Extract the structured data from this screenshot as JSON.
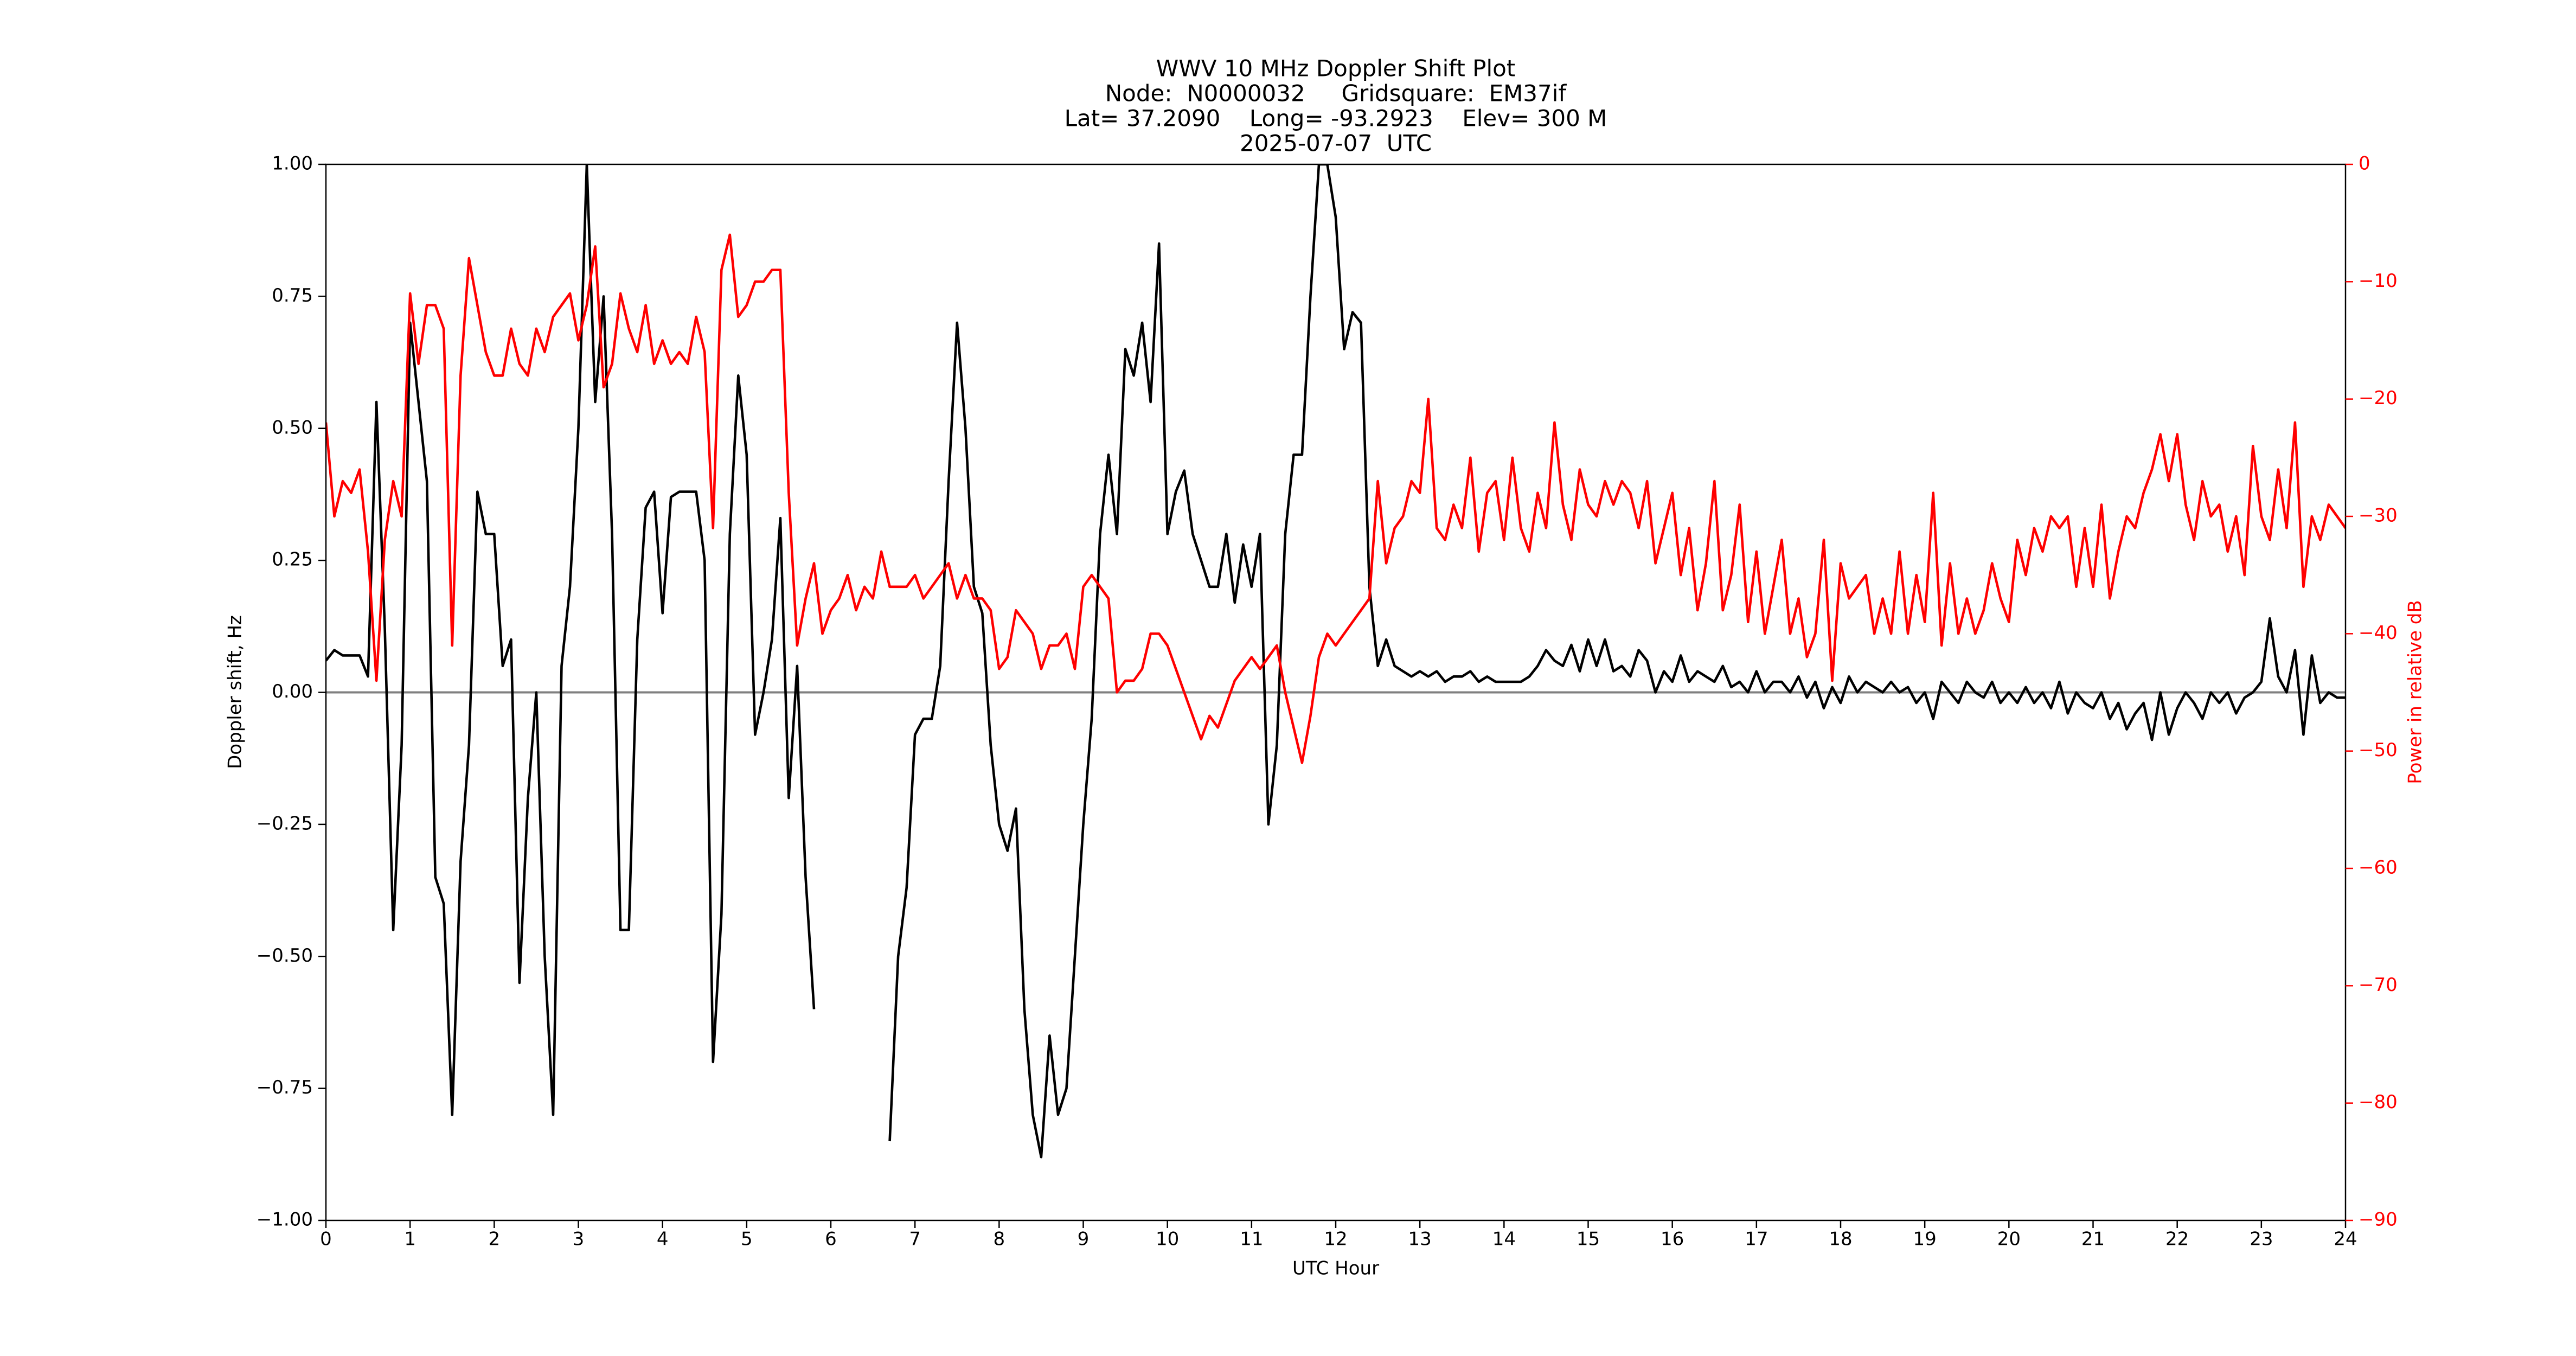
{
  "chart_data": {
    "type": "line",
    "title": [
      "WWV 10 MHz Doppler Shift Plot",
      "Node:  N0000032     Gridsquare:  EM37if",
      "Lat= 37.2090    Long= -93.2923    Elev= 300 M",
      "2025-07-07  UTC"
    ],
    "xlabel": "UTC Hour",
    "ylabel": "Doppler shift, Hz",
    "y2label": "Power in relative dB",
    "x": [
      0,
      0.1,
      0.2,
      0.3,
      0.4,
      0.5,
      0.6,
      0.7,
      0.8,
      0.9,
      1,
      1.1,
      1.2,
      1.3,
      1.4,
      1.5,
      1.6,
      1.7,
      1.8,
      1.9,
      2,
      2.1,
      2.2,
      2.3,
      2.4,
      2.5,
      2.6,
      2.7,
      2.8,
      2.9,
      3,
      3.1,
      3.2,
      3.3,
      3.4,
      3.5,
      3.6,
      3.7,
      3.8,
      3.9,
      4,
      4.1,
      4.2,
      4.3,
      4.4,
      4.5,
      4.6,
      4.7,
      4.8,
      4.9,
      5,
      5.1,
      5.2,
      5.3,
      5.4,
      5.5,
      5.6,
      5.7,
      5.8,
      5.9,
      6,
      6.1,
      6.2,
      6.3,
      6.4,
      6.5,
      6.6,
      6.7,
      6.8,
      6.9,
      7,
      7.1,
      7.2,
      7.3,
      7.4,
      7.5,
      7.6,
      7.7,
      7.8,
      7.9,
      8,
      8.1,
      8.2,
      8.3,
      8.4,
      8.5,
      8.6,
      8.7,
      8.8,
      8.9,
      9,
      9.1,
      9.2,
      9.3,
      9.4,
      9.5,
      9.6,
      9.7,
      9.8,
      9.9,
      10,
      10.1,
      10.2,
      10.3,
      10.4,
      10.5,
      10.6,
      10.7,
      10.8,
      10.9,
      11,
      11.1,
      11.2,
      11.3,
      11.4,
      11.5,
      11.6,
      11.7,
      11.8,
      11.9,
      12,
      12.1,
      12.2,
      12.3,
      12.4,
      12.5,
      12.6,
      12.7,
      12.8,
      12.9,
      13,
      13.1,
      13.2,
      13.3,
      13.4,
      13.5,
      13.6,
      13.7,
      13.8,
      13.9,
      14,
      14.1,
      14.2,
      14.3,
      14.4,
      14.5,
      14.6,
      14.7,
      14.8,
      14.9,
      15,
      15.1,
      15.2,
      15.3,
      15.4,
      15.5,
      15.6,
      15.7,
      15.8,
      15.9,
      16,
      16.1,
      16.2,
      16.3,
      16.4,
      16.5,
      16.6,
      16.7,
      16.8,
      16.9,
      17,
      17.1,
      17.2,
      17.3,
      17.4,
      17.5,
      17.6,
      17.7,
      17.8,
      17.9,
      18,
      18.1,
      18.2,
      18.3,
      18.4,
      18.5,
      18.6,
      18.7,
      18.8,
      18.9,
      19,
      19.1,
      19.2,
      19.3,
      19.4,
      19.5,
      19.6,
      19.7,
      19.8,
      19.9,
      20,
      20.1,
      20.2,
      20.3,
      20.4,
      20.5,
      20.6,
      20.7,
      20.8,
      20.9,
      21,
      21.1,
      21.2,
      21.3,
      21.4,
      21.5,
      21.6,
      21.7,
      21.8,
      21.9,
      22,
      22.1,
      22.2,
      22.3,
      22.4,
      22.5,
      22.6,
      22.7,
      22.8,
      22.9,
      23,
      23.1,
      23.2,
      23.3,
      23.4,
      23.5,
      23.6,
      23.7,
      23.8,
      23.9,
      24
    ],
    "series": [
      {
        "color": "#000000",
        "values": [
          0.06,
          0.08,
          0.07,
          0.07,
          0.07,
          0.03,
          0.55,
          0.12,
          -0.45,
          -0.1,
          0.7,
          0.55,
          0.4,
          -0.35,
          -0.4,
          -0.8,
          -0.32,
          -0.1,
          0.38,
          0.3,
          0.3,
          0.05,
          0.1,
          -0.55,
          -0.2,
          0,
          -0.5,
          -0.8,
          0.05,
          0.2,
          0.5,
          1.0,
          0.55,
          0.75,
          0.3,
          -0.45,
          -0.45,
          0.1,
          0.35,
          0.38,
          0.15,
          0.37,
          0.38,
          0.38,
          0.38,
          0.25,
          -0.7,
          -0.42,
          0.3,
          0.6,
          0.45,
          -0.08,
          0,
          0.1,
          0.33,
          -0.2,
          0.05,
          -0.35,
          -0.6,
          null,
          null,
          null,
          null,
          null,
          null,
          null,
          null,
          -0.85,
          -0.5,
          -0.37,
          -0.08,
          -0.05,
          -0.05,
          0.05,
          0.4,
          0.7,
          0.5,
          0.2,
          0.15,
          -0.1,
          -0.25,
          -0.3,
          -0.22,
          -0.6,
          -0.8,
          -0.88,
          -0.65,
          -0.8,
          -0.75,
          -0.5,
          -0.25,
          -0.05,
          0.3,
          0.45,
          0.3,
          0.65,
          0.6,
          0.7,
          0.55,
          0.85,
          0.3,
          0.38,
          0.42,
          0.3,
          0.25,
          0.2,
          0.2,
          0.3,
          0.17,
          0.28,
          0.2,
          0.3,
          -0.25,
          -0.1,
          0.3,
          0.45,
          0.45,
          0.75,
          1.0,
          1.0,
          0.9,
          0.65,
          0.72,
          0.7,
          0.2,
          0.05,
          0.1,
          0.05,
          0.04,
          0.03,
          0.04,
          0.03,
          0.04,
          0.02,
          0.03,
          0.03,
          0.04,
          0.02,
          0.03,
          0.02,
          0.02,
          0.02,
          0.02,
          0.03,
          0.05,
          0.08,
          0.06,
          0.05,
          0.09,
          0.04,
          0.1,
          0.05,
          0.1,
          0.04,
          0.05,
          0.03,
          0.08,
          0.06,
          0,
          0.04,
          0.02,
          0.07,
          0.02,
          0.04,
          0.03,
          0.02,
          0.05,
          0.01,
          0.02,
          0,
          0.04,
          0,
          0.02,
          0.02,
          0,
          0.03,
          -0.01,
          0.02,
          -0.03,
          0.01,
          -0.02,
          0.03,
          0,
          0.02,
          0.01,
          0,
          0.02,
          0,
          0.01,
          -0.02,
          0,
          -0.05,
          0.02,
          0,
          -0.02,
          0.02,
          0,
          -0.01,
          0.02,
          -0.02,
          0,
          -0.02,
          0.01,
          -0.02,
          0,
          -0.03,
          0.02,
          -0.04,
          0,
          -0.02,
          -0.03,
          0,
          -0.05,
          -0.02,
          -0.07,
          -0.04,
          -0.02,
          -0.09,
          0,
          -0.08,
          -0.03,
          0,
          -0.02,
          -0.05,
          0,
          -0.02,
          0,
          -0.04,
          -0.01,
          0,
          0.02,
          0.14,
          0.03,
          0,
          0.08,
          -0.08,
          0.07,
          -0.02,
          0,
          -0.01,
          -0.01
        ]
      },
      {
        "color": "#ff0000",
        "axis": "y2",
        "values": [
          -22,
          -30,
          -27,
          -28,
          -26,
          -33,
          -44,
          -32,
          -27,
          -30,
          -11,
          -17,
          -12,
          -12,
          -14,
          -41,
          -18,
          -8,
          -12,
          -16,
          -18,
          -18,
          -14,
          -17,
          -18,
          -14,
          -16,
          -13,
          -12,
          -11,
          -15,
          -12,
          -7,
          -19,
          -17,
          -11,
          -14,
          -16,
          -12,
          -17,
          -15,
          -17,
          -16,
          -17,
          -13,
          -16,
          -31,
          -9,
          -6,
          -13,
          -12,
          -10,
          -10,
          -9,
          -9,
          -28,
          -41,
          -37,
          -34,
          -40,
          -38,
          -37,
          -35,
          -38,
          -36,
          -37,
          -33,
          -36,
          -36,
          -36,
          -35,
          -37,
          -36,
          -35,
          -34,
          -37,
          -35,
          -37,
          -37,
          -38,
          -43,
          -42,
          -38,
          -39,
          -40,
          -43,
          -41,
          -41,
          -40,
          -43,
          -36,
          -35,
          -36,
          -37,
          -45,
          -44,
          -44,
          -43,
          -40,
          -40,
          -41,
          -43,
          -45,
          -47,
          -49,
          -47,
          -48,
          -46,
          -44,
          -43,
          -42,
          -43,
          -42,
          -41,
          -45,
          -48,
          -51,
          -47,
          -42,
          -40,
          -41,
          -40,
          -39,
          -38,
          -37,
          -27,
          -34,
          -31,
          -30,
          -27,
          -28,
          -20,
          -31,
          -32,
          -29,
          -31,
          -25,
          -33,
          -28,
          -27,
          -32,
          -25,
          -31,
          -33,
          -28,
          -31,
          -22,
          -29,
          -32,
          -26,
          -29,
          -30,
          -27,
          -29,
          -27,
          -28,
          -31,
          -27,
          -34,
          -31,
          -28,
          -35,
          -31,
          -38,
          -34,
          -27,
          -38,
          -35,
          -29,
          -39,
          -33,
          -40,
          -36,
          -32,
          -40,
          -37,
          -42,
          -40,
          -32,
          -44,
          -34,
          -37,
          -36,
          -35,
          -40,
          -37,
          -40,
          -33,
          -40,
          -35,
          -39,
          -28,
          -41,
          -34,
          -40,
          -37,
          -40,
          -38,
          -34,
          -37,
          -39,
          -32,
          -35,
          -31,
          -33,
          -30,
          -31,
          -30,
          -36,
          -31,
          -36,
          -29,
          -37,
          -33,
          -30,
          -31,
          -28,
          -26,
          -23,
          -27,
          -23,
          -29,
          -32,
          -27,
          -30,
          -29,
          -33,
          -30,
          -35,
          -24,
          -30,
          -32,
          -26,
          -31,
          -22,
          -36,
          -30,
          -32,
          -29,
          -30,
          -31
        ]
      }
    ],
    "xlim": [
      0,
      24
    ],
    "xticks": [
      0,
      1,
      2,
      3,
      4,
      5,
      6,
      7,
      8,
      9,
      10,
      11,
      12,
      13,
      14,
      15,
      16,
      17,
      18,
      19,
      20,
      21,
      22,
      23,
      24
    ],
    "ylim": [
      -1,
      1
    ],
    "yticks": [
      {
        "value": -1,
        "label": "−1.00"
      },
      {
        "value": -0.75,
        "label": "−0.75"
      },
      {
        "value": -0.5,
        "label": "−0.50"
      },
      {
        "value": -0.25,
        "label": "−0.25"
      },
      {
        "value": 0,
        "label": "0.00"
      },
      {
        "value": 0.25,
        "label": "0.25"
      },
      {
        "value": 0.5,
        "label": "0.50"
      },
      {
        "value": 0.75,
        "label": "0.75"
      },
      {
        "value": 1,
        "label": "1.00"
      }
    ],
    "y2lim": [
      -90,
      0
    ],
    "y2ticks": [
      {
        "value": -90,
        "label": "−90"
      },
      {
        "value": -80,
        "label": "−80"
      },
      {
        "value": -70,
        "label": "−70"
      },
      {
        "value": -60,
        "label": "−60"
      },
      {
        "value": -50,
        "label": "−50"
      },
      {
        "value": -40,
        "label": "−40"
      },
      {
        "value": -30,
        "label": "−30"
      },
      {
        "value": -20,
        "label": "−20"
      },
      {
        "value": -10,
        "label": "−10"
      },
      0
    ],
    "y2color": "#ff0000",
    "hline": 0,
    "hline_color": "#808080",
    "grid": false
  }
}
